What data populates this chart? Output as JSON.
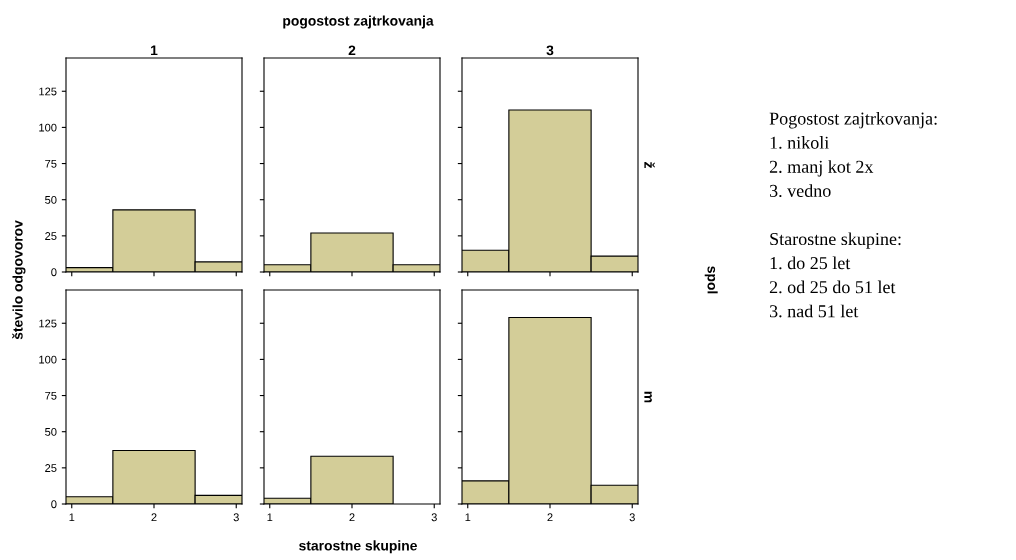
{
  "chart_data": [
    {
      "type": "bar",
      "title": "1",
      "xlabel": "starostne skupine",
      "ylabel": "število odgovorov",
      "y2label": "spol",
      "annotations": [
        "pogostost zajtrkovanja"
      ],
      "x": [
        1,
        2,
        3
      ],
      "values": [
        3,
        43,
        7
      ],
      "color": "#d3cd98",
      "xlim": [
        0.93,
        3.07
      ],
      "ylim": [
        0,
        148
      ],
      "yticks": [
        0,
        25,
        50,
        75,
        100,
        125
      ],
      "xticks": [
        1,
        2,
        3
      ],
      "tick_labels": "y",
      "grid": false
    },
    {
      "type": "bar",
      "title": "2",
      "x": [
        1,
        2,
        3
      ],
      "values": [
        5,
        27,
        5
      ],
      "color": "#d3cd98",
      "xlim": [
        0.93,
        3.07
      ],
      "ylim": [
        0,
        148
      ],
      "yticks": [
        0,
        25,
        50,
        75,
        100,
        125
      ],
      "xticks": [
        1,
        2,
        3
      ],
      "tick_labels": false,
      "grid": false
    },
    {
      "type": "bar",
      "title": "3",
      "annotations": [
        "ž"
      ],
      "x": [
        1,
        2,
        3
      ],
      "values": [
        15,
        112,
        11
      ],
      "color": "#d3cd98",
      "xlim": [
        0.93,
        3.07
      ],
      "ylim": [
        0,
        148
      ],
      "yticks": [
        0,
        25,
        50,
        75,
        100,
        125
      ],
      "xticks": [
        1,
        2,
        3
      ],
      "tick_labels": false,
      "grid": false
    },
    {
      "type": "bar",
      "x": [
        1,
        2,
        3
      ],
      "values": [
        5,
        37,
        6
      ],
      "color": "#d3cd98",
      "xlim": [
        0.93,
        3.07
      ],
      "ylim": [
        0,
        148
      ],
      "yticks": [
        0,
        25,
        50,
        75,
        100,
        125
      ],
      "xticks": [
        1,
        2,
        3
      ],
      "grid": false
    },
    {
      "type": "bar",
      "x": [
        1,
        2
      ],
      "values": [
        4,
        33
      ],
      "color": "#d3cd98",
      "xlim": [
        0.93,
        3.07
      ],
      "ylim": [
        0,
        148
      ],
      "yticks": [
        0,
        25,
        50,
        75,
        100,
        125
      ],
      "xticks": [
        1,
        2,
        3
      ],
      "tick_labels": "x",
      "grid": false
    },
    {
      "type": "bar",
      "annotations": [
        "m"
      ],
      "x": [
        1,
        2,
        3
      ],
      "values": [
        16,
        129,
        13
      ],
      "color": "#d3cd98",
      "xlim": [
        0.93,
        3.07
      ],
      "ylim": [
        0,
        148
      ],
      "yticks": [
        0,
        25,
        50,
        75,
        100,
        125
      ],
      "xticks": [
        1,
        2,
        3
      ],
      "tick_labels": "x",
      "grid": false
    },
    {
      "type": "other",
      "annotations": [
        "Pogostost zajtrkovanja:",
        "1. nikoli",
        "2. manj kot 2x",
        "3. vedno",
        "Starostne skupine:",
        "1. do 25 let",
        "2. od 25 do 51 let",
        "3. nad 51 let"
      ]
    }
  ]
}
